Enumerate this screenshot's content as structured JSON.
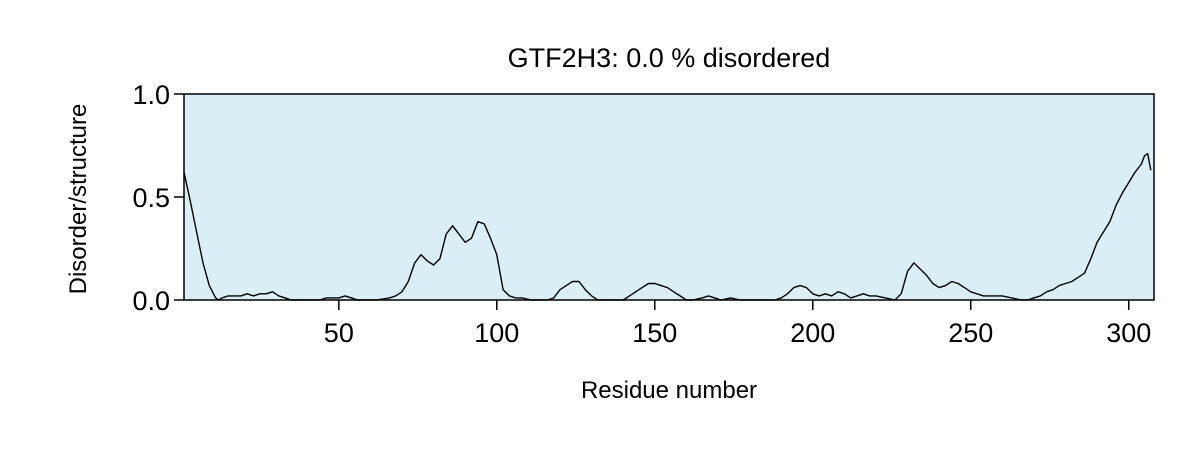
{
  "chart_data": {
    "type": "line",
    "title": "GTF2H3: 0.0 % disordered",
    "xlabel": "Residue number",
    "ylabel": "Disorder/structure",
    "xlim": [
      1,
      308
    ],
    "ylim": [
      0.0,
      1.0
    ],
    "x_ticks": [
      50,
      100,
      150,
      200,
      250,
      300
    ],
    "x_tick_labels": [
      "50",
      "100",
      "150",
      "200",
      "250",
      "300"
    ],
    "y_ticks": [
      0.0,
      0.5,
      1.0
    ],
    "y_tick_labels": [
      "0.0",
      "0.5",
      "1.0"
    ],
    "grid": false,
    "legend": "none",
    "colors": {
      "background": "#daeef6",
      "line": "#000000"
    },
    "series": [
      {
        "x": [
          1,
          3,
          5,
          7,
          9,
          11,
          12,
          13,
          15,
          17,
          19,
          21,
          23,
          25,
          27,
          29,
          31,
          33,
          35,
          38,
          41,
          44,
          46,
          48,
          50,
          52,
          54,
          56,
          58,
          62,
          66,
          68,
          70,
          72,
          74,
          76,
          78,
          80,
          82,
          84,
          86,
          88,
          90,
          92,
          94,
          96,
          98,
          100,
          102,
          104,
          106,
          108,
          111,
          114,
          116,
          118,
          120,
          122,
          124,
          126,
          128,
          130,
          132,
          135,
          140,
          143,
          146,
          148,
          150,
          152,
          154,
          156,
          158,
          160,
          162,
          165,
          167,
          169,
          171,
          174,
          177,
          180,
          184,
          188,
          190,
          192,
          194,
          196,
          198,
          200,
          202,
          204,
          206,
          208,
          210,
          212,
          214,
          216,
          218,
          220,
          223,
          226,
          228,
          230,
          232,
          234,
          236,
          238,
          240,
          242,
          244,
          246,
          248,
          250,
          252,
          254,
          257,
          260,
          263,
          266,
          268,
          270,
          272,
          274,
          276,
          278,
          280,
          282,
          284,
          286,
          288,
          290,
          292,
          294,
          296,
          298,
          300,
          302,
          304,
          305,
          306,
          307
        ],
        "values": [
          0.62,
          0.48,
          0.33,
          0.18,
          0.07,
          0.01,
          0.0,
          0.01,
          0.02,
          0.02,
          0.02,
          0.03,
          0.02,
          0.03,
          0.03,
          0.04,
          0.02,
          0.01,
          0.0,
          0.0,
          0.0,
          0.0,
          0.01,
          0.01,
          0.01,
          0.02,
          0.01,
          0.0,
          0.0,
          0.0,
          0.01,
          0.02,
          0.04,
          0.09,
          0.18,
          0.22,
          0.19,
          0.17,
          0.2,
          0.32,
          0.36,
          0.32,
          0.28,
          0.3,
          0.38,
          0.37,
          0.3,
          0.22,
          0.05,
          0.02,
          0.01,
          0.01,
          0.0,
          0.0,
          0.0,
          0.01,
          0.05,
          0.07,
          0.09,
          0.09,
          0.05,
          0.02,
          0.0,
          0.0,
          0.0,
          0.03,
          0.06,
          0.08,
          0.08,
          0.07,
          0.06,
          0.04,
          0.02,
          0.0,
          0.0,
          0.01,
          0.02,
          0.01,
          0.0,
          0.01,
          0.0,
          0.0,
          0.0,
          0.0,
          0.01,
          0.03,
          0.06,
          0.07,
          0.06,
          0.03,
          0.02,
          0.03,
          0.02,
          0.04,
          0.03,
          0.01,
          0.02,
          0.03,
          0.02,
          0.02,
          0.01,
          0.0,
          0.03,
          0.14,
          0.18,
          0.15,
          0.12,
          0.08,
          0.06,
          0.07,
          0.09,
          0.08,
          0.06,
          0.04,
          0.03,
          0.02,
          0.02,
          0.02,
          0.01,
          0.0,
          0.0,
          0.01,
          0.02,
          0.04,
          0.05,
          0.07,
          0.08,
          0.09,
          0.11,
          0.13,
          0.2,
          0.28,
          0.33,
          0.38,
          0.46,
          0.52,
          0.57,
          0.62,
          0.66,
          0.7,
          0.71,
          0.63
        ]
      }
    ]
  }
}
